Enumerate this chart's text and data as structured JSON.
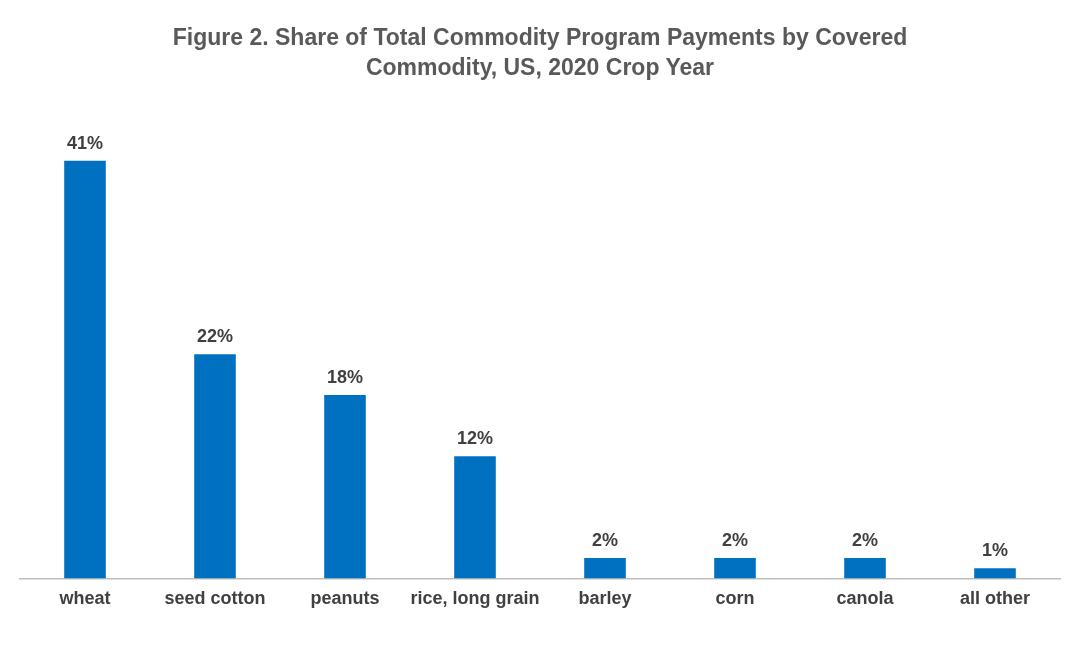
{
  "chart_data": {
    "type": "bar",
    "title": "Figure  2. Share of Total Commodity Program Payments by Covered Commodity, US, 2020 Crop Year",
    "categories": [
      "wheat",
      "seed cotton",
      "peanuts",
      "rice, long grain",
      "barley",
      "corn",
      "canola",
      "all other"
    ],
    "values": [
      41,
      22,
      18,
      12,
      2,
      2,
      2,
      1
    ],
    "value_labels": [
      "41%",
      "22%",
      "18%",
      "12%",
      "2%",
      "2%",
      "2%",
      "1%"
    ],
    "color": "#0070c0",
    "grid": false,
    "legend": false
  }
}
